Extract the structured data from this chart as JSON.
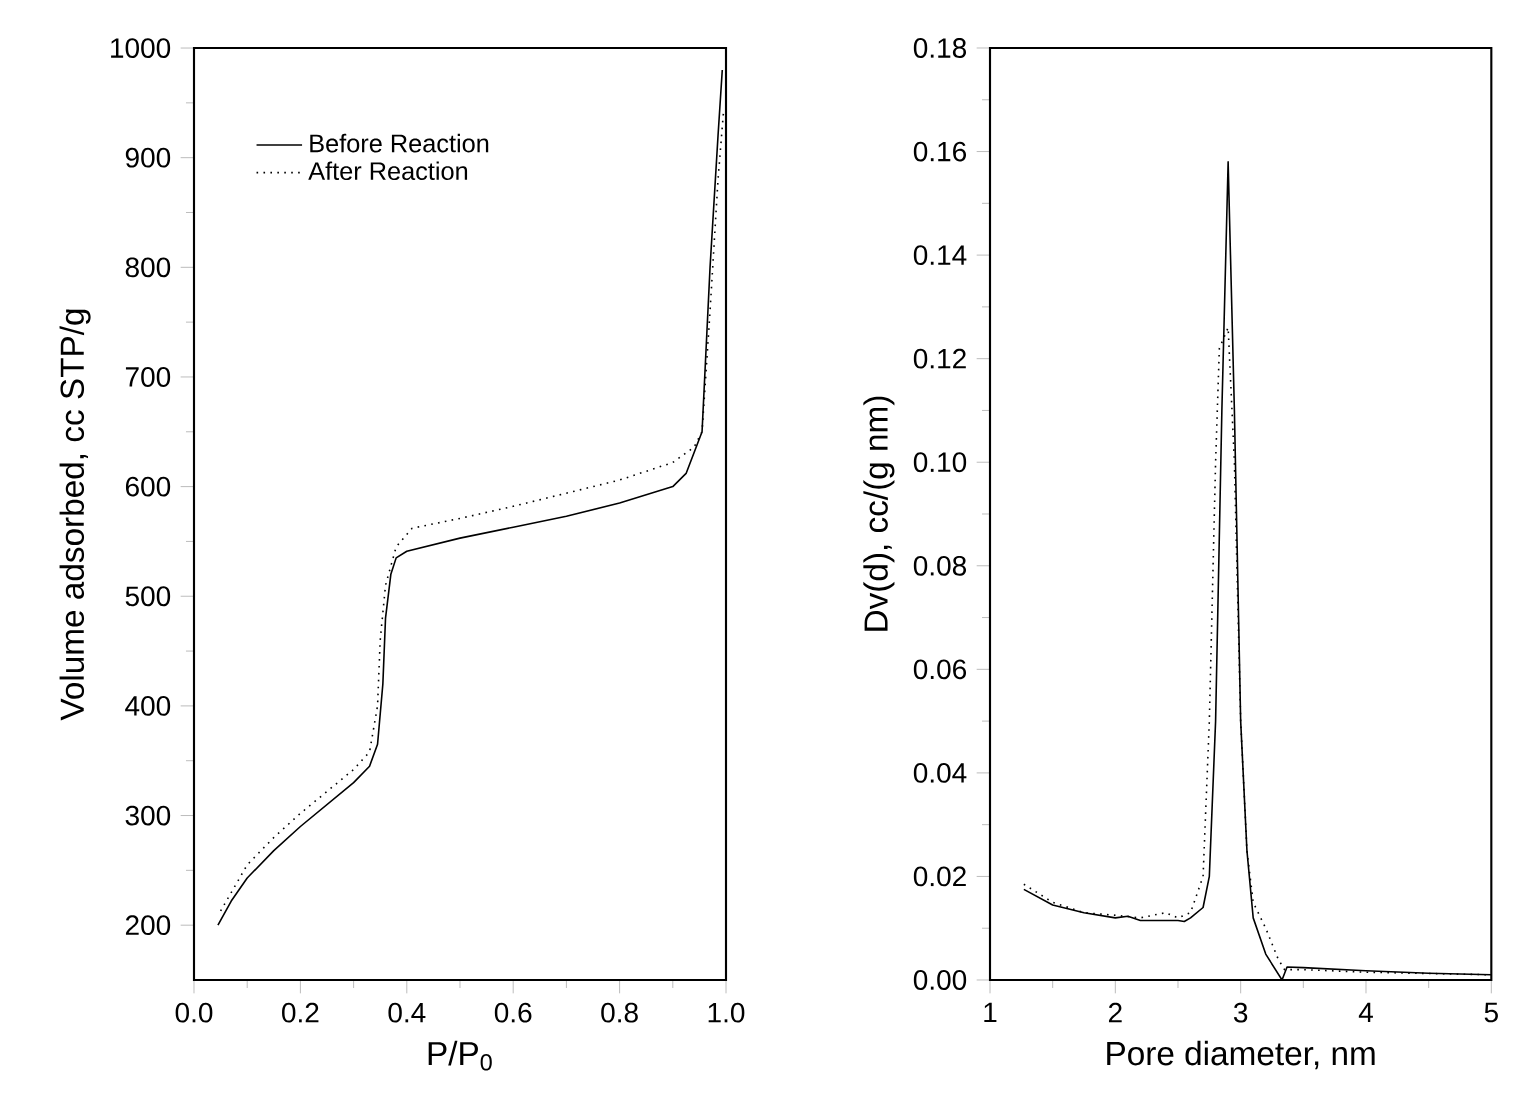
{
  "chart_data": [
    {
      "type": "line",
      "xlabel": "P/P$_{0}$",
      "ylabel": "Volume adsorbed, cc STP/g",
      "xlim": [
        0,
        1
      ],
      "ylim": [
        150,
        1000
      ],
      "xticks": [
        {
          "value": 0,
          "label": "0.0"
        },
        {
          "value": 0.2,
          "label": "0.2"
        },
        {
          "value": 0.4,
          "label": "0.4"
        },
        {
          "value": 0.6,
          "label": "0.6"
        },
        {
          "value": 0.8,
          "label": "0.8"
        },
        {
          "value": 1,
          "label": "1.0"
        }
      ],
      "yticks": [
        200,
        300,
        400,
        500,
        600,
        700,
        800,
        900,
        1000
      ],
      "legend": "top left",
      "grid": false,
      "marker": "none",
      "series": [
        {
          "name": "Before Reaction",
          "color": "#000000",
          "line_style": "solid",
          "x": [
            0.045,
            0.07,
            0.1,
            0.15,
            0.2,
            0.25,
            0.3,
            0.33,
            0.345,
            0.355,
            0.36,
            0.37,
            0.38,
            0.4,
            0.5,
            0.6,
            0.7,
            0.8,
            0.9,
            0.925,
            0.955,
            0.97,
            0.985,
            0.993
          ],
          "values": [
            200,
            222,
            243,
            268,
            290,
            310,
            330,
            345,
            365,
            420,
            480,
            520,
            535,
            541,
            553,
            563,
            573,
            585,
            600,
            612,
            650,
            800,
            920,
            980
          ]
        },
        {
          "name": "After Reaction",
          "color": "#000000",
          "line_style": "dotted",
          "x": [
            0.05,
            0.1,
            0.15,
            0.2,
            0.25,
            0.3,
            0.33,
            0.345,
            0.35,
            0.36,
            0.38,
            0.41,
            0.5,
            0.6,
            0.7,
            0.8,
            0.9,
            0.94,
            0.955,
            0.97,
            0.985,
            0.995
          ],
          "values": [
            213,
            255,
            280,
            302,
            322,
            342,
            358,
            400,
            460,
            510,
            545,
            562,
            571,
            582,
            594,
            606,
            622,
            636,
            650,
            760,
            880,
            940
          ]
        }
      ]
    },
    {
      "type": "line",
      "xlabel": "Pore diameter, nm",
      "ylabel": "Dv(d), cc/(g nm)",
      "xlim": [
        1,
        5
      ],
      "ylim": [
        0,
        0.18
      ],
      "xticks": [
        1,
        2,
        3,
        4,
        5
      ],
      "yticks": [
        {
          "value": 0,
          "label": "0.00"
        },
        {
          "value": 0.02,
          "label": "0.02"
        },
        {
          "value": 0.04,
          "label": "0.04"
        },
        {
          "value": 0.06,
          "label": "0.06"
        },
        {
          "value": 0.08,
          "label": "0.08"
        },
        {
          "value": 0.1,
          "label": "0.10"
        },
        {
          "value": 0.12,
          "label": "0.12"
        },
        {
          "value": 0.14,
          "label": "0.14"
        },
        {
          "value": 0.16,
          "label": "0.16"
        },
        {
          "value": 0.18,
          "label": "0.18"
        }
      ],
      "grid": false,
      "marker": "none",
      "series": [
        {
          "color": "#000000",
          "line_style": "solid",
          "x": [
            1.27,
            1.5,
            1.75,
            2.0,
            2.1,
            2.2,
            2.5,
            2.55,
            2.6,
            2.7,
            2.75,
            2.8,
            2.85,
            2.9,
            2.95,
            3.0,
            3.05,
            3.1,
            3.2,
            3.33,
            3.37,
            3.5,
            4.0,
            4.5,
            5.0
          ],
          "values": [
            0.0175,
            0.0145,
            0.013,
            0.012,
            0.0123,
            0.0115,
            0.0115,
            0.0113,
            0.012,
            0.014,
            0.02,
            0.05,
            0.11,
            0.158,
            0.11,
            0.05,
            0.025,
            0.012,
            0.005,
            0.0,
            0.0025,
            0.0024,
            0.0018,
            0.0013,
            0.001
          ]
        },
        {
          "color": "#000000",
          "line_style": "dotted",
          "x": [
            1.27,
            1.5,
            1.75,
            2.0,
            2.2,
            2.4,
            2.5,
            2.6,
            2.7,
            2.75,
            2.8,
            2.83,
            2.9,
            2.95,
            3.0,
            3.05,
            3.1,
            3.2,
            3.3,
            3.35,
            3.5,
            4.0,
            5.0
          ],
          "values": [
            0.0185,
            0.015,
            0.013,
            0.0125,
            0.012,
            0.013,
            0.012,
            0.013,
            0.02,
            0.05,
            0.1,
            0.122,
            0.126,
            0.1,
            0.05,
            0.025,
            0.015,
            0.01,
            0.004,
            0.002,
            0.002,
            0.0015,
            0.001
          ]
        }
      ]
    }
  ]
}
